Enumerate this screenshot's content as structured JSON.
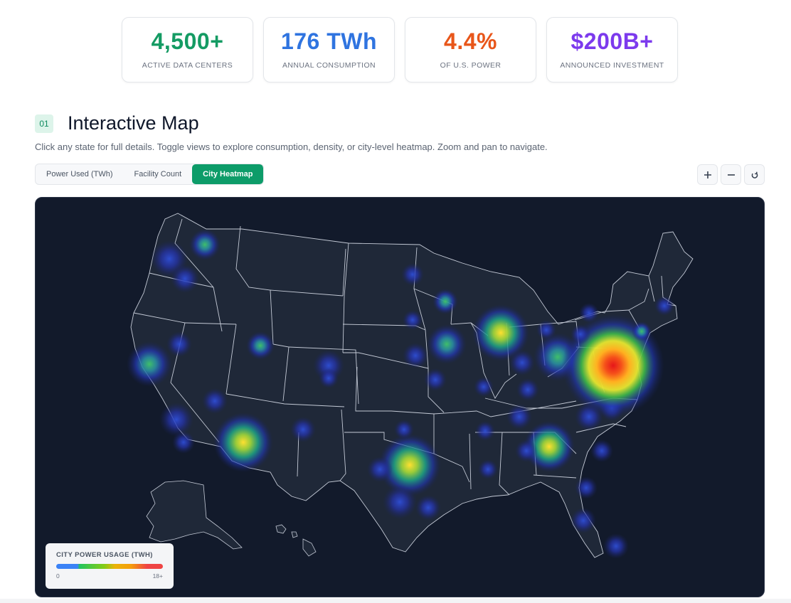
{
  "stats": [
    {
      "value": "4,500+",
      "label": "ACTIVE DATA CENTERS",
      "color": "#149b63"
    },
    {
      "value": "176 TWh",
      "label": "ANNUAL CONSUMPTION",
      "color": "#2f74e0"
    },
    {
      "value": "4.4%",
      "label": "OF U.S. POWER",
      "color": "#e8561a"
    },
    {
      "value": "$200B+",
      "label": "ANNOUNCED INVESTMENT",
      "color": "#7c3aed"
    }
  ],
  "section": {
    "number": "01",
    "title": "Interactive Map",
    "description": "Click any state for full details. Toggle views to explore consumption, density, or city-level heatmap. Zoom and pan to navigate."
  },
  "toggles": [
    {
      "label": "Power Used (TWh)",
      "active": false
    },
    {
      "label": "Facility Count",
      "active": false
    },
    {
      "label": "City Heatmap",
      "active": true
    }
  ],
  "zoom": {
    "in_icon": "plus-icon",
    "out_icon": "minus-icon",
    "reset_icon": "reset-icon"
  },
  "legend": {
    "title": "CITY POWER USAGE (TWH)",
    "min": "0",
    "max": "18+"
  },
  "colors": {
    "accent": "#0d9c69",
    "map_bg": "#121a2b",
    "state_fill": "#1f2838",
    "state_border": "#c4cad6"
  }
}
